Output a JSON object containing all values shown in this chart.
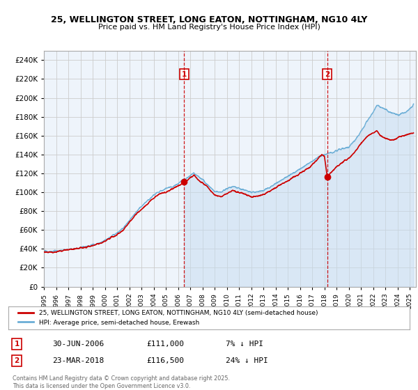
{
  "title_line1": "25, WELLINGTON STREET, LONG EATON, NOTTINGHAM, NG10 4LY",
  "title_line2": "Price paid vs. HM Land Registry's House Price Index (HPI)",
  "xlim_start": 1995.0,
  "xlim_end": 2025.5,
  "ylim_min": 0,
  "ylim_max": 250000,
  "ytick_step": 20000,
  "plot_bg_color": "#eef4fb",
  "line1_color": "#cc0000",
  "line2_color": "#6baed6",
  "fill_color": "#c6dcf0",
  "grid_color": "#cccccc",
  "marker1_date": 2006.496,
  "marker2_date": 2018.228,
  "marker1_value": 111000,
  "marker2_value": 116500,
  "legend_line1": "25, WELLINGTON STREET, LONG EATON, NOTTINGHAM, NG10 4LY (semi-detached house)",
  "legend_line2": "HPI: Average price, semi-detached house, Erewash",
  "annotation1_label": "1",
  "annotation2_label": "2",
  "footer_line1": "Contains HM Land Registry data © Crown copyright and database right 2025.",
  "footer_line2": "This data is licensed under the Open Government Licence v3.0.",
  "table_row1": [
    "1",
    "30-JUN-2006",
    "£111,000",
    "7% ↓ HPI"
  ],
  "table_row2": [
    "2",
    "23-MAR-2018",
    "£116,500",
    "24% ↓ HPI"
  ],
  "hpi_anchors": [
    [
      1995.0,
      37500
    ],
    [
      1995.5,
      37200
    ],
    [
      1996.0,
      37800
    ],
    [
      1996.5,
      38500
    ],
    [
      1997.0,
      39500
    ],
    [
      1997.5,
      40500
    ],
    [
      1998.0,
      41500
    ],
    [
      1998.5,
      42500
    ],
    [
      1999.0,
      44000
    ],
    [
      1999.5,
      46000
    ],
    [
      2000.0,
      49000
    ],
    [
      2000.5,
      53000
    ],
    [
      2001.0,
      57000
    ],
    [
      2001.5,
      62000
    ],
    [
      2002.0,
      70000
    ],
    [
      2002.5,
      78000
    ],
    [
      2003.0,
      85000
    ],
    [
      2003.5,
      91000
    ],
    [
      2004.0,
      97000
    ],
    [
      2004.5,
      101000
    ],
    [
      2005.0,
      104000
    ],
    [
      2005.5,
      106000
    ],
    [
      2006.0,
      109000
    ],
    [
      2006.5,
      114000
    ],
    [
      2007.0,
      118000
    ],
    [
      2007.3,
      121000
    ],
    [
      2007.6,
      117000
    ],
    [
      2008.0,
      113000
    ],
    [
      2008.5,
      107000
    ],
    [
      2009.0,
      101000
    ],
    [
      2009.5,
      100000
    ],
    [
      2010.0,
      104000
    ],
    [
      2010.5,
      106000
    ],
    [
      2011.0,
      104000
    ],
    [
      2011.5,
      102000
    ],
    [
      2012.0,
      100000
    ],
    [
      2012.5,
      100500
    ],
    [
      2013.0,
      102000
    ],
    [
      2013.5,
      105000
    ],
    [
      2014.0,
      109000
    ],
    [
      2014.5,
      113000
    ],
    [
      2015.0,
      117000
    ],
    [
      2015.5,
      121000
    ],
    [
      2016.0,
      125000
    ],
    [
      2016.5,
      129000
    ],
    [
      2017.0,
      133000
    ],
    [
      2017.5,
      137000
    ],
    [
      2018.0,
      140000
    ],
    [
      2018.5,
      142000
    ],
    [
      2019.0,
      144000
    ],
    [
      2019.5,
      146000
    ],
    [
      2020.0,
      148000
    ],
    [
      2020.5,
      155000
    ],
    [
      2021.0,
      165000
    ],
    [
      2021.5,
      175000
    ],
    [
      2022.0,
      185000
    ],
    [
      2022.3,
      192000
    ],
    [
      2022.6,
      190000
    ],
    [
      2023.0,
      188000
    ],
    [
      2023.5,
      184000
    ],
    [
      2024.0,
      182000
    ],
    [
      2024.5,
      184000
    ],
    [
      2025.0,
      188000
    ],
    [
      2025.3,
      192000
    ]
  ],
  "price_anchors": [
    [
      1995.0,
      36500
    ],
    [
      1995.5,
      36200
    ],
    [
      1996.0,
      37000
    ],
    [
      1996.5,
      38000
    ],
    [
      1997.0,
      39000
    ],
    [
      1997.5,
      40000
    ],
    [
      1998.0,
      41000
    ],
    [
      1998.5,
      42000
    ],
    [
      1999.0,
      43500
    ],
    [
      1999.5,
      45500
    ],
    [
      2000.0,
      48000
    ],
    [
      2000.5,
      52000
    ],
    [
      2001.0,
      55000
    ],
    [
      2001.5,
      60000
    ],
    [
      2002.0,
      68000
    ],
    [
      2002.5,
      76000
    ],
    [
      2003.0,
      82000
    ],
    [
      2003.5,
      88000
    ],
    [
      2004.0,
      94000
    ],
    [
      2004.5,
      98000
    ],
    [
      2005.0,
      100000
    ],
    [
      2005.5,
      103000
    ],
    [
      2006.0,
      107000
    ],
    [
      2006.496,
      111000
    ],
    [
      2006.8,
      113000
    ],
    [
      2007.3,
      118000
    ],
    [
      2007.6,
      114000
    ],
    [
      2008.0,
      110000
    ],
    [
      2008.5,
      104000
    ],
    [
      2009.0,
      97000
    ],
    [
      2009.5,
      95000
    ],
    [
      2010.0,
      99000
    ],
    [
      2010.5,
      102000
    ],
    [
      2011.0,
      100000
    ],
    [
      2011.5,
      98000
    ],
    [
      2012.0,
      95000
    ],
    [
      2012.5,
      96000
    ],
    [
      2013.0,
      98000
    ],
    [
      2013.5,
      101000
    ],
    [
      2014.0,
      105000
    ],
    [
      2014.5,
      109000
    ],
    [
      2015.0,
      112000
    ],
    [
      2015.5,
      116000
    ],
    [
      2016.0,
      120000
    ],
    [
      2016.5,
      124000
    ],
    [
      2017.0,
      129000
    ],
    [
      2017.5,
      136000
    ],
    [
      2017.8,
      140000
    ],
    [
      2018.0,
      138000
    ],
    [
      2018.228,
      116500
    ],
    [
      2018.5,
      120000
    ],
    [
      2019.0,
      127000
    ],
    [
      2019.5,
      132000
    ],
    [
      2020.0,
      136000
    ],
    [
      2020.5,
      143000
    ],
    [
      2021.0,
      152000
    ],
    [
      2021.5,
      159000
    ],
    [
      2022.0,
      163000
    ],
    [
      2022.3,
      165000
    ],
    [
      2022.6,
      160000
    ],
    [
      2023.0,
      157000
    ],
    [
      2023.5,
      155000
    ],
    [
      2024.0,
      158000
    ],
    [
      2024.5,
      160000
    ],
    [
      2025.0,
      162000
    ],
    [
      2025.3,
      163000
    ]
  ]
}
